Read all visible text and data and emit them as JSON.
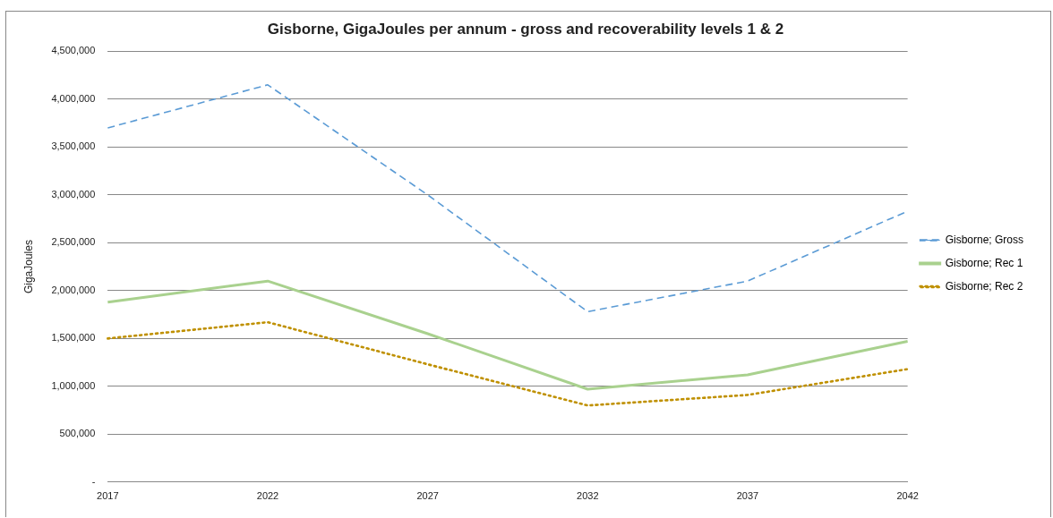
{
  "chart_data": {
    "type": "line",
    "title": "Gisborne, GigaJoules per annum - gross and recoverability levels 1 & 2",
    "ylabel": "GigaJoules",
    "categories": [
      "2017",
      "2022",
      "2027",
      "2032",
      "2037",
      "2042"
    ],
    "series": [
      {
        "name": "Gisborne; Gross",
        "color": "#5b9bd5",
        "line_style": "dashed",
        "values": [
          3700000,
          4150000,
          3000000,
          1780000,
          2100000,
          2830000
        ]
      },
      {
        "name": "Gisborne; Rec 1",
        "color": "#a9d18e",
        "line_style": "solid",
        "values": [
          1880000,
          2100000,
          1550000,
          970000,
          1120000,
          1470000
        ]
      },
      {
        "name": "Gisborne; Rec 2",
        "color": "#bf9000",
        "line_style": "dotted",
        "values": [
          1500000,
          1670000,
          1230000,
          800000,
          910000,
          1180000
        ]
      }
    ],
    "ylim": [
      0,
      4500000
    ],
    "yticks": [
      {
        "value": 0,
        "label": "-"
      },
      {
        "value": 500000,
        "label": "500,000"
      },
      {
        "value": 1000000,
        "label": "1,000,000"
      },
      {
        "value": 1500000,
        "label": "1,500,000"
      },
      {
        "value": 2000000,
        "label": "2,000,000"
      },
      {
        "value": 2500000,
        "label": "2,500,000"
      },
      {
        "value": 3000000,
        "label": "3,000,000"
      },
      {
        "value": 3500000,
        "label": "3,500,000"
      },
      {
        "value": 4000000,
        "label": "4,000,000"
      },
      {
        "value": 4500000,
        "label": "4,500,000"
      }
    ],
    "grid": "y",
    "legend": "right",
    "marker": "none"
  }
}
